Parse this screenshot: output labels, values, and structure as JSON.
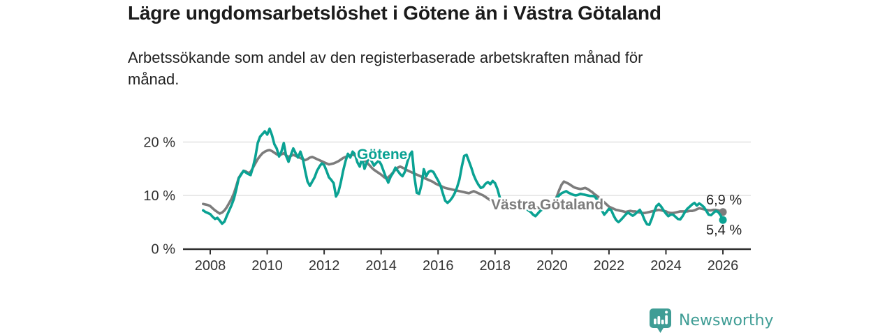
{
  "footer": {
    "brand": "Newsworthy"
  },
  "colors": {
    "gotene_line": "#0aa293",
    "vastra_gotaland_line": "#7c7c7c",
    "brand_teal": "#3f9d95",
    "gridline": "#dcdcdc",
    "axis": "#2e2e2e",
    "text": "#1b1b1b"
  },
  "chart_data": {
    "type": "line",
    "title": "Lägre ungdomsarbetslöshet i Götene än i Västra Götaland",
    "subtitle": "Arbetssökande som andel av den registerbaserade arbetskraften månad för månad.",
    "subtitle_lines": [
      "Arbetssökande som andel av den registerbaserade arbetskraften månad för",
      "månad."
    ],
    "unit": "%",
    "x_start": 2007.75,
    "x_step_years": 0.0833333,
    "x_end": 2026.0,
    "ylim": [
      0,
      23.5
    ],
    "grid": "horizontal-only",
    "legend": "inline-labels",
    "y_ticks": [
      {
        "value": 0,
        "label": "0 %"
      },
      {
        "value": 10,
        "label": "10 %"
      },
      {
        "value": 20,
        "label": "20 %"
      }
    ],
    "x_ticks": [
      {
        "value": 2008,
        "label": "2008"
      },
      {
        "value": 2010,
        "label": "2010"
      },
      {
        "value": 2012,
        "label": "2012"
      },
      {
        "value": 2014,
        "label": "2014"
      },
      {
        "value": 2016,
        "label": "2016"
      },
      {
        "value": 2018,
        "label": "2018"
      },
      {
        "value": 2020,
        "label": "2020"
      },
      {
        "value": 2022,
        "label": "2022"
      },
      {
        "value": 2024,
        "label": "2024"
      },
      {
        "value": 2026,
        "label": "2026"
      }
    ],
    "series": [
      {
        "id": "vastra-gotaland",
        "name": "Västra Götaland",
        "color": "#7c7c7c",
        "end_value": 6.9,
        "end_label": "6,9 %",
        "values": [
          8.4,
          8.3,
          8.2,
          8.0,
          7.6,
          7.2,
          6.9,
          6.6,
          6.8,
          7.2,
          7.8,
          8.6,
          9.4,
          10.4,
          11.8,
          13.3,
          14.0,
          14.6,
          14.5,
          14.2,
          14.4,
          15.2,
          16.0,
          16.8,
          17.4,
          17.9,
          18.2,
          18.4,
          18.5,
          18.3,
          18.0,
          17.7,
          17.5,
          17.7,
          17.9,
          17.5,
          17.2,
          17.4,
          17.6,
          17.4,
          17.2,
          17.0,
          16.8,
          16.6,
          16.8,
          17.1,
          17.2,
          17.0,
          16.8,
          16.6,
          16.4,
          16.2,
          16.0,
          15.8,
          15.9,
          16.0,
          16.2,
          16.4,
          16.7,
          17.0,
          17.2,
          17.4,
          17.5,
          17.6,
          17.5,
          17.4,
          17.2,
          17.0,
          16.6,
          16.2,
          15.7,
          15.2,
          14.8,
          14.5,
          14.2,
          13.9,
          13.5,
          13.2,
          13.4,
          13.8,
          14.3,
          14.8,
          15.2,
          15.4,
          15.2,
          15.0,
          14.7,
          14.5,
          14.3,
          14.1,
          13.9,
          13.7,
          13.5,
          13.3,
          13.1,
          12.9,
          12.7,
          12.5,
          12.2,
          12.0,
          11.8,
          11.6,
          11.4,
          11.3,
          11.2,
          11.1,
          11.0,
          10.9,
          10.8,
          10.7,
          10.6,
          10.5,
          10.4,
          10.6,
          10.8,
          10.6,
          10.4,
          10.2,
          10.0,
          9.7,
          9.4,
          9.1,
          8.9,
          8.7,
          8.5,
          8.4,
          8.3,
          8.2,
          8.1,
          8.0,
          7.9,
          7.8,
          7.9,
          8.0,
          8.1,
          8.0,
          8.0,
          7.9,
          7.9,
          7.8,
          7.8,
          7.7,
          7.6,
          7.6,
          7.5,
          7.7,
          7.9,
          8.2,
          8.8,
          9.8,
          11.0,
          12.0,
          12.6,
          12.4,
          12.2,
          11.9,
          11.6,
          11.4,
          11.3,
          11.2,
          11.3,
          11.4,
          11.2,
          10.9,
          10.6,
          10.2,
          9.9,
          9.5,
          9.1,
          8.7,
          8.3,
          7.9,
          7.7,
          7.5,
          7.3,
          7.2,
          7.1,
          7.0,
          6.9,
          7.0,
          7.1,
          7.0,
          7.0,
          6.9,
          6.8,
          6.7,
          6.7,
          6.8,
          6.9,
          7.0,
          7.1,
          7.2,
          7.3,
          7.2,
          7.1,
          7.0,
          6.8,
          6.7,
          6.7,
          6.8,
          6.9,
          7.0,
          7.0,
          7.0,
          7.0,
          7.1,
          7.1,
          7.2,
          7.4,
          7.6,
          7.5,
          7.4,
          7.3,
          7.2,
          7.2,
          7.3,
          7.3,
          7.2,
          7.1,
          6.9
        ]
      },
      {
        "id": "gotene",
        "name": "Götene",
        "color": "#0aa293",
        "end_value": 5.4,
        "end_label": "5,4 %",
        "values": [
          7.2,
          6.9,
          6.7,
          6.5,
          6.0,
          5.6,
          5.8,
          5.3,
          4.7,
          5.1,
          6.2,
          7.2,
          8.2,
          9.4,
          11.2,
          13.2,
          13.9,
          14.6,
          14.3,
          14.0,
          13.8,
          15.3,
          17.2,
          19.8,
          21.0,
          21.5,
          22.0,
          21.4,
          22.5,
          21.3,
          19.6,
          18.8,
          17.3,
          18.2,
          19.8,
          17.4,
          16.3,
          17.6,
          18.8,
          17.9,
          17.1,
          18.2,
          16.9,
          14.6,
          12.6,
          11.8,
          12.6,
          13.4,
          14.6,
          15.4,
          16.0,
          15.7,
          14.6,
          13.4,
          12.9,
          12.3,
          9.8,
          10.6,
          12.4,
          14.6,
          16.4,
          17.8,
          17.1,
          18.2,
          17.7,
          16.2,
          15.4,
          17.1,
          15.0,
          16.2,
          17.2,
          16.4,
          15.6,
          16.1,
          16.5,
          15.8,
          14.6,
          13.4,
          12.4,
          13.5,
          14.2,
          15.2,
          14.6,
          14.0,
          13.6,
          14.4,
          16.2,
          17.6,
          18.2,
          13.5,
          10.5,
          10.3,
          12.0,
          14.9,
          13.6,
          14.4,
          14.6,
          14.4,
          13.6,
          12.8,
          11.9,
          10.4,
          9.0,
          8.6,
          9.0,
          9.6,
          10.4,
          11.5,
          13.0,
          15.4,
          17.4,
          17.6,
          16.4,
          15.2,
          13.8,
          12.8,
          12.0,
          11.4,
          11.6,
          12.2,
          12.5,
          12.1,
          12.7,
          12.3,
          11.2,
          9.6,
          8.4,
          7.8,
          7.5,
          7.8,
          8.1,
          7.9,
          7.6,
          7.9,
          8.1,
          7.8,
          7.5,
          7.2,
          6.9,
          6.4,
          6.1,
          6.6,
          7.1,
          7.4,
          7.7,
          8.0,
          8.3,
          8.7,
          9.2,
          9.6,
          10.0,
          10.4,
          10.6,
          10.8,
          10.5,
          10.3,
          10.1,
          10.0,
          10.1,
          10.3,
          10.2,
          10.1,
          10.0,
          9.9,
          9.9,
          9.8,
          9.2,
          8.2,
          7.2,
          6.4,
          6.9,
          7.5,
          7.2,
          6.2,
          5.4,
          5.0,
          5.4,
          5.9,
          6.4,
          6.8,
          6.5,
          6.2,
          6.5,
          6.9,
          7.3,
          6.5,
          5.4,
          4.6,
          4.5,
          5.6,
          6.9,
          8.0,
          8.4,
          7.9,
          7.2,
          6.6,
          6.1,
          6.4,
          6.4,
          6.0,
          5.6,
          5.5,
          6.1,
          6.9,
          7.5,
          7.9,
          8.3,
          8.6,
          8.1,
          8.5,
          8.2,
          7.8,
          7.1,
          6.4,
          6.3,
          6.7,
          7.1,
          6.9,
          6.3,
          5.4
        ]
      }
    ]
  }
}
